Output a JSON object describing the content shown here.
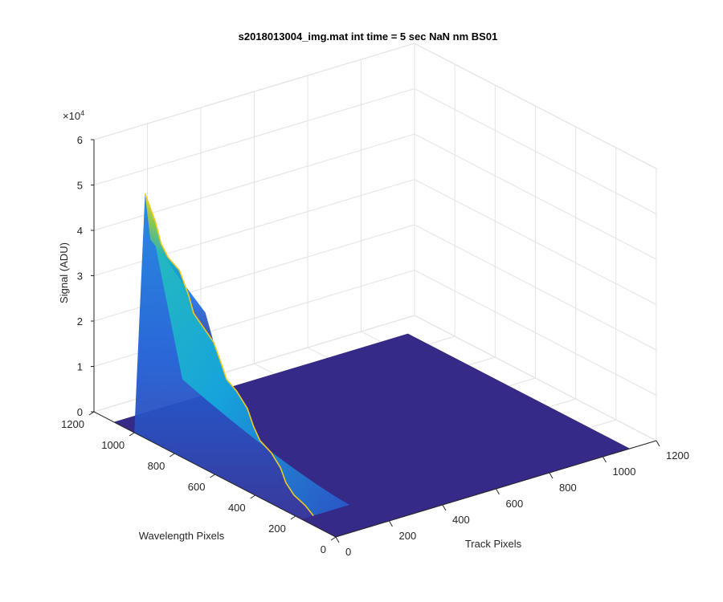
{
  "chart_data": {
    "type": "surface",
    "title": "s2018013004_img.mat int time = 5 sec  NaN nm BS01",
    "xlabel": "Track Pixels",
    "ylabel": "Wavelength Pixels",
    "zlabel": "Signal (ADU)",
    "z_exponent_label": "×10",
    "z_exponent_power": "4",
    "xlim": [
      0,
      1200
    ],
    "ylim": [
      0,
      1200
    ],
    "zlim": [
      0,
      60000
    ],
    "x_ticks": [
      "0",
      "200",
      "400",
      "600",
      "800",
      "1000",
      "1200"
    ],
    "y_ticks": [
      "0",
      "200",
      "400",
      "600",
      "800",
      "1000",
      "1200"
    ],
    "z_ticks": [
      "0",
      "1",
      "2",
      "3",
      "4",
      "5",
      "6"
    ],
    "grid": true,
    "colormap": "parula",
    "peak": {
      "track_pixel": 40,
      "wavelength_pixel": 1000,
      "signal": 52000
    },
    "surface_extent": {
      "track_max": 1100,
      "wavelength_max": 1100
    },
    "colors": {
      "low": "#352a87",
      "mid": "#0f8fd6",
      "high": "#f9fb0e"
    }
  }
}
